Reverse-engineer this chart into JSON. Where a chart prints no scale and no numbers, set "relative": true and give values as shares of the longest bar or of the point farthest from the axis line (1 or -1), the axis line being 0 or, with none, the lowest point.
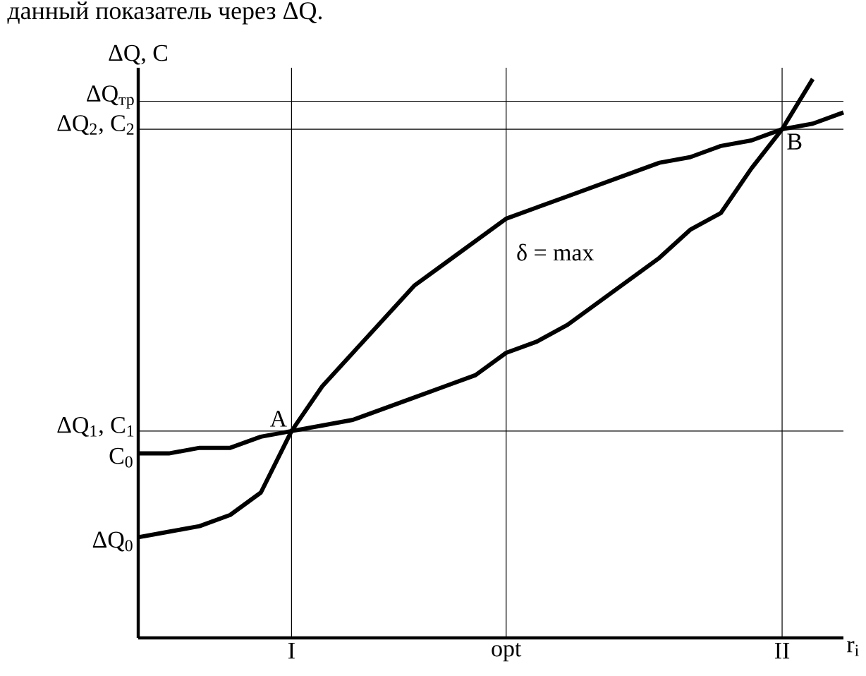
{
  "chart_data": {
    "type": "line",
    "relative": true,
    "grid": "x",
    "categories": [
      null,
      null,
      null,
      null,
      null,
      "I",
      null,
      null,
      null,
      null,
      null,
      null,
      "opt",
      null,
      null,
      null,
      null,
      null,
      null,
      null,
      null,
      "II",
      null,
      null
    ],
    "annotations": [
      "данный показатель через ΔQ.",
      {
        "text": "A",
        "x": "I",
        "y": 0.37
      },
      {
        "text": "B",
        "x": "II",
        "y": 0.91
      },
      "δ = max",
      "C$_{0}$",
      "ΔQ$_{0}$"
    ],
    "xlabel": "r$_{i}$",
    "ylabel": "ΔQ, C",
    "series": [
      {
        "color": "#000000",
        "values": [
          0.33,
          0.33,
          0.34,
          0.34,
          0.36,
          0.37,
          0.38,
          0.39,
          0.41,
          0.43,
          0.45,
          0.47,
          0.51,
          0.53,
          0.56,
          0.6,
          0.64,
          0.68,
          0.73,
          0.76,
          0.84,
          0.91,
          1,
          null
        ]
      },
      {
        "color": "#000000",
        "values": [
          0.18,
          0.19,
          0.2,
          0.22,
          0.26,
          0.37,
          0.45,
          0.51,
          0.57,
          0.63,
          0.67,
          0.71,
          0.75,
          0.77,
          0.79,
          0.81,
          0.83,
          0.85,
          0.86,
          0.88,
          0.89,
          0.91,
          0.92,
          0.94
        ]
      }
    ],
    "ref_lines": [
      {
        "axis": "y",
        "value": 0.96,
        "label": "ΔQ$_{тр}$"
      },
      {
        "axis": "y",
        "value": 0.91,
        "label": "ΔQ$_{2}$, C$_{2}$"
      },
      {
        "axis": "y",
        "value": 0.37,
        "label": "ΔQ$_{1}$, C$_{1}$"
      }
    ]
  }
}
